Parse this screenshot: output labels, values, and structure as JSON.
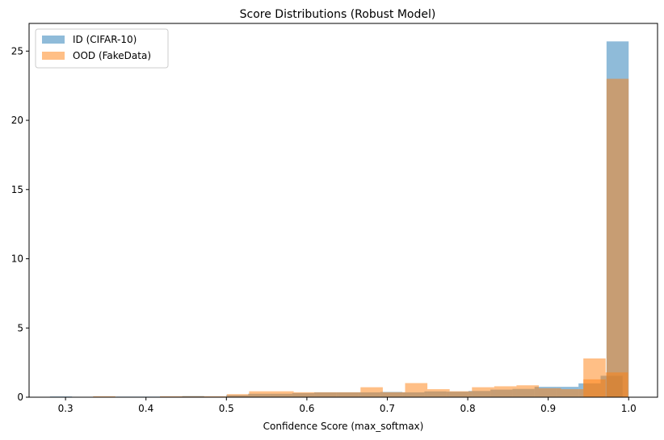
{
  "chart_data": {
    "type": "histogram",
    "title": "Score Distributions (Robust Model)",
    "xlabel": "Confidence Score (max_softmax)",
    "ylabel": "",
    "xlim": [
      0.2547,
      1.0359
    ],
    "ylim": [
      0,
      27
    ],
    "xticks": [
      "0.3",
      "0.4",
      "0.5",
      "0.6",
      "0.7",
      "0.8",
      "0.9",
      "1.0"
    ],
    "xtick_values": [
      0.3,
      0.4,
      0.5,
      0.6,
      0.7,
      0.8,
      0.9,
      1.0
    ],
    "yticks": [
      "0",
      "5",
      "10",
      "15",
      "20",
      "25"
    ],
    "ytick_values": [
      0,
      5,
      10,
      15,
      20,
      25
    ],
    "legend_position": "upper-left",
    "alpha": 0.5,
    "series": [
      {
        "name": "ID (CIFAR-10)",
        "color": "#1f77b4",
        "bins": [
          [
            0.2807,
            0.3081,
            0.05
          ],
          [
            0.3081,
            0.3355,
            0.0
          ],
          [
            0.3355,
            0.3628,
            0.0
          ],
          [
            0.3628,
            0.3902,
            0.04
          ],
          [
            0.3902,
            0.4176,
            0.04
          ],
          [
            0.4176,
            0.445,
            0.04
          ],
          [
            0.445,
            0.4723,
            0.08
          ],
          [
            0.4723,
            0.4997,
            0.04
          ],
          [
            0.4997,
            0.5271,
            0.15
          ],
          [
            0.5271,
            0.5545,
            0.25
          ],
          [
            0.5545,
            0.5818,
            0.25
          ],
          [
            0.5818,
            0.6092,
            0.3
          ],
          [
            0.6092,
            0.6366,
            0.35
          ],
          [
            0.6366,
            0.664,
            0.35
          ],
          [
            0.664,
            0.6913,
            0.35
          ],
          [
            0.6913,
            0.7187,
            0.38
          ],
          [
            0.7187,
            0.7461,
            0.35
          ],
          [
            0.7461,
            0.7735,
            0.42
          ],
          [
            0.7735,
            0.8008,
            0.4
          ],
          [
            0.8008,
            0.8282,
            0.45
          ],
          [
            0.8282,
            0.8556,
            0.55
          ],
          [
            0.8556,
            0.883,
            0.6
          ],
          [
            0.883,
            0.9103,
            0.75
          ],
          [
            0.9103,
            0.9377,
            0.75
          ],
          [
            0.9377,
            0.9651,
            1.0
          ],
          [
            0.9651,
            0.9925,
            1.55
          ],
          [
            0.9725,
            1.0,
            25.7
          ]
        ]
      },
      {
        "name": "OOD (FakeData)",
        "color": "#ff7f0e",
        "bins": [
          [
            0.3343,
            0.362,
            0.07
          ],
          [
            0.362,
            0.3897,
            0.0
          ],
          [
            0.3897,
            0.4174,
            0.0
          ],
          [
            0.4174,
            0.4451,
            0.07
          ],
          [
            0.4451,
            0.4728,
            0.07
          ],
          [
            0.4728,
            0.5005,
            0.07
          ],
          [
            0.5005,
            0.5282,
            0.22
          ],
          [
            0.5282,
            0.5559,
            0.43
          ],
          [
            0.5559,
            0.5836,
            0.43
          ],
          [
            0.5836,
            0.6113,
            0.36
          ],
          [
            0.6113,
            0.639,
            0.36
          ],
          [
            0.639,
            0.6667,
            0.36
          ],
          [
            0.6667,
            0.6944,
            0.72
          ],
          [
            0.6944,
            0.7221,
            0.36
          ],
          [
            0.7221,
            0.7498,
            1.02
          ],
          [
            0.7498,
            0.7775,
            0.58
          ],
          [
            0.7775,
            0.8052,
            0.43
          ],
          [
            0.8052,
            0.8329,
            0.72
          ],
          [
            0.8329,
            0.8606,
            0.79
          ],
          [
            0.8606,
            0.8883,
            0.86
          ],
          [
            0.8883,
            0.916,
            0.65
          ],
          [
            0.916,
            0.9437,
            0.58
          ],
          [
            0.9437,
            0.9714,
            1.29
          ],
          [
            0.9714,
            0.9991,
            1.79
          ],
          [
            0.9437,
            0.9714,
            2.8
          ],
          [
            0.9725,
            1.0,
            23.0
          ]
        ]
      }
    ]
  }
}
